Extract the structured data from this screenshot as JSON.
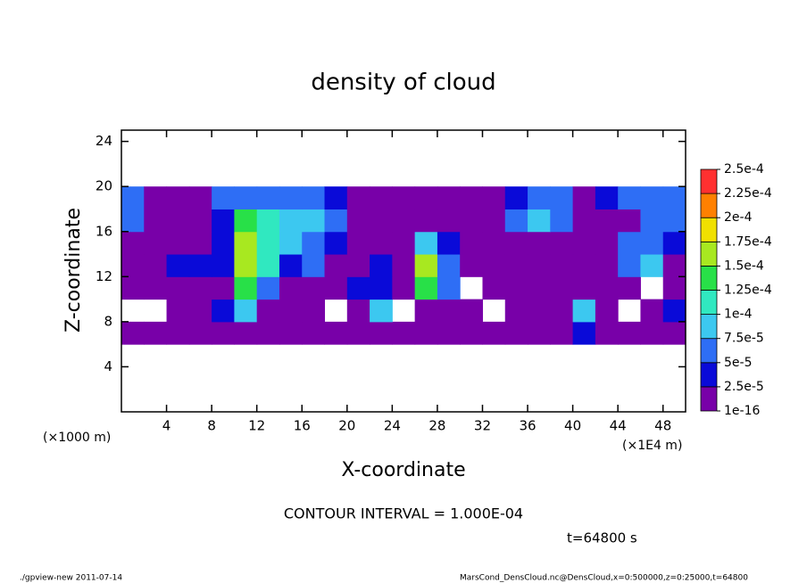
{
  "chart_data": {
    "type": "heatmap",
    "title": "density of cloud",
    "x_label": "X-coordinate",
    "y_label": "Z-coordinate",
    "x_unit_left": "(×1000 m)",
    "x_unit_right": "(×1E4 m)",
    "contour_interval": "CONTOUR INTERVAL = 1.000E-04",
    "time": "t=64800 s",
    "footer_left": "./gpview-new  2011-07-14",
    "footer_right": "MarsCond_DensCloud.nc@DensCloud,x=0:500000,z=0:25000,t=64800",
    "xlim": [
      0,
      50
    ],
    "xticks": [
      4,
      8,
      12,
      16,
      20,
      24,
      28,
      32,
      36,
      40,
      44,
      48
    ],
    "ylim": [
      0,
      25
    ],
    "yticks": [
      4,
      8,
      12,
      16,
      20,
      24
    ],
    "xbins": [
      0,
      2,
      4,
      6,
      8,
      10,
      12,
      14,
      16,
      18,
      20,
      22,
      24,
      26,
      28,
      30,
      32,
      34,
      36,
      38,
      40,
      42,
      44,
      46,
      48,
      50
    ],
    "zbins": [
      6,
      8,
      10,
      12,
      14,
      16,
      18,
      20
    ],
    "values": [
      [
        1e-05,
        1e-05,
        1e-05,
        1e-05,
        1e-05,
        1e-05,
        1e-05,
        1e-05,
        1e-05,
        1e-05,
        1e-05,
        1e-05,
        1e-05,
        1e-05,
        1e-05,
        1e-05,
        1e-05,
        1e-05,
        1e-05,
        1e-05,
        3e-05,
        1e-05,
        1e-05,
        1e-05,
        1e-05
      ],
      [
        null,
        null,
        1e-05,
        1e-05,
        3e-05,
        9e-05,
        1e-05,
        1e-05,
        1e-05,
        null,
        1e-05,
        8e-05,
        null,
        1e-05,
        1e-05,
        1e-05,
        null,
        1e-05,
        1e-05,
        1e-05,
        9e-05,
        1e-05,
        null,
        1e-05,
        3e-05
      ],
      [
        1e-05,
        1e-05,
        1e-05,
        1e-05,
        2e-05,
        0.00013,
        6e-05,
        1e-05,
        1e-05,
        1e-05,
        3e-05,
        4e-05,
        1e-05,
        0.00014,
        5e-05,
        null,
        1e-05,
        1e-05,
        1e-05,
        1e-05,
        1e-05,
        1e-05,
        1e-05,
        null,
        1e-05
      ],
      [
        1e-05,
        1e-05,
        3e-05,
        4e-05,
        3e-05,
        0.00016,
        0.0001,
        3e-05,
        5e-05,
        1e-05,
        1e-05,
        3e-05,
        1e-05,
        0.00015,
        6e-05,
        1e-05,
        1e-05,
        1e-05,
        1e-05,
        1e-05,
        1e-05,
        1e-05,
        5e-05,
        8e-05,
        1e-05
      ],
      [
        1e-05,
        1e-05,
        2e-05,
        1e-05,
        3e-05,
        0.00017,
        0.00012,
        9e-05,
        6e-05,
        4e-05,
        1e-05,
        1e-05,
        1e-05,
        9e-05,
        3e-05,
        1e-05,
        1e-05,
        1e-05,
        1e-05,
        1e-05,
        1e-05,
        1e-05,
        5e-05,
        6e-05,
        4e-05
      ],
      [
        6e-05,
        2e-05,
        1e-05,
        1e-05,
        4e-05,
        0.00014,
        0.0001,
        8e-05,
        9e-05,
        5e-05,
        1e-05,
        1e-05,
        1e-05,
        1e-05,
        1e-05,
        1e-05,
        1e-05,
        6e-05,
        8e-05,
        6e-05,
        1e-05,
        1e-05,
        1e-05,
        6e-05,
        7e-05
      ],
      [
        7e-05,
        1e-05,
        1e-05,
        2e-05,
        5e-05,
        6e-05,
        5e-05,
        7e-05,
        6e-05,
        3e-05,
        1e-05,
        1e-05,
        1e-05,
        1e-05,
        1e-05,
        1e-05,
        1e-05,
        4e-05,
        7e-05,
        6e-05,
        1e-05,
        4e-05,
        6e-05,
        7e-05,
        6e-05
      ]
    ],
    "colorbar": {
      "ticks": [
        1e-16,
        {
          "value": 2.5e-05,
          "label": "2.5e-5"
        },
        {
          "value": 5e-05,
          "label": "5e-5"
        },
        {
          "value": 7.5e-05,
          "label": "7.5e-5"
        },
        {
          "value": 0.0001,
          "label": "1e-4"
        },
        {
          "value": 0.000125,
          "label": "1.25e-4"
        },
        {
          "value": 0.00015,
          "label": "1.5e-4"
        },
        {
          "value": 0.000175,
          "label": "1.75e-4"
        },
        {
          "value": 0.0002,
          "label": "2e-4"
        },
        {
          "value": 0.000225,
          "label": "2.25e-4"
        },
        {
          "value": 0.00025,
          "label": "2.5e-4"
        }
      ],
      "colors": [
        "#7800a8",
        "#0a0ad8",
        "#2e6ef5",
        "#3cc8f0",
        "#30e8c0",
        "#28e048",
        "#a8e820",
        "#f0e000",
        "#ff8000",
        "#ff3030"
      ]
    }
  }
}
